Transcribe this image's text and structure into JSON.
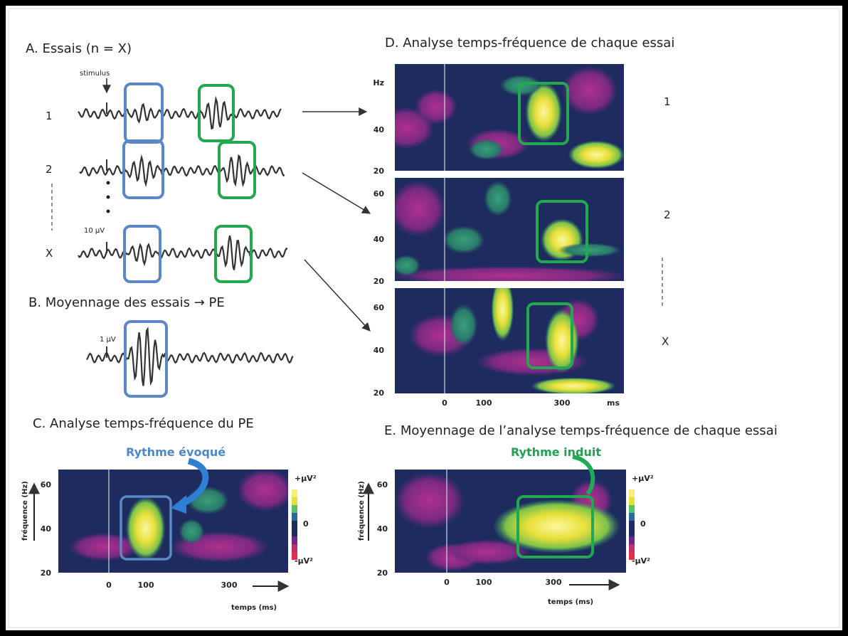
{
  "panel_a": {
    "title": "A.  Essais (n = X)",
    "stimulus": "stimulus",
    "trials": [
      "1",
      "2",
      "X"
    ],
    "scale": "10 µV"
  },
  "panel_b": {
    "title": "B.  Moyennage des essais → PE",
    "scale": "1 µV"
  },
  "panel_c": {
    "title": "C.  Analyse temps-fréquence du PE",
    "annotation": "Rythme évoqué",
    "y_label": "fréquence (Hz)",
    "y_ticks": [
      "60",
      "40",
      "20"
    ],
    "x_ticks": [
      "0",
      "100",
      "300"
    ],
    "x_label": "temps (ms)",
    "colorbar": [
      "+µV²",
      "0",
      "-µV²"
    ]
  },
  "panel_d": {
    "title": "D.  Analyse temps-fréquence de chaque essai",
    "plots": [
      {
        "y_ticks": [
          "Hz",
          "40",
          "20"
        ]
      },
      {
        "y_ticks": [
          "60",
          "40",
          "20"
        ]
      },
      {
        "y_ticks": [
          "60",
          "40",
          "20"
        ]
      }
    ],
    "x_ticks": [
      "0",
      "100",
      "300",
      "ms"
    ],
    "trials": [
      "1",
      "2",
      "X"
    ]
  },
  "panel_e": {
    "title": "E.  Moyennage de l’analyse temps-fréquence de chaque essai",
    "annotation": "Rythme induit",
    "y_label": "fréquence (Hz)",
    "y_ticks": [
      "60",
      "40",
      "20"
    ],
    "x_ticks": [
      "0",
      "100",
      "300"
    ],
    "x_label": "temps (ms)",
    "colorbar": [
      "+µV²",
      "0",
      "-µV²"
    ]
  }
}
